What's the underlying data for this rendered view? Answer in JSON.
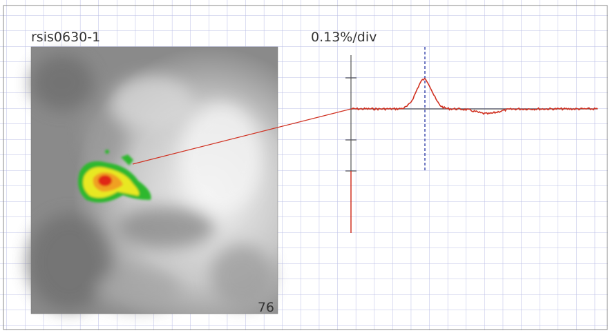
{
  "image": {
    "label": "rsis0630-1",
    "frame": "76"
  },
  "trace": {
    "scale": "0.13%/div"
  }
}
